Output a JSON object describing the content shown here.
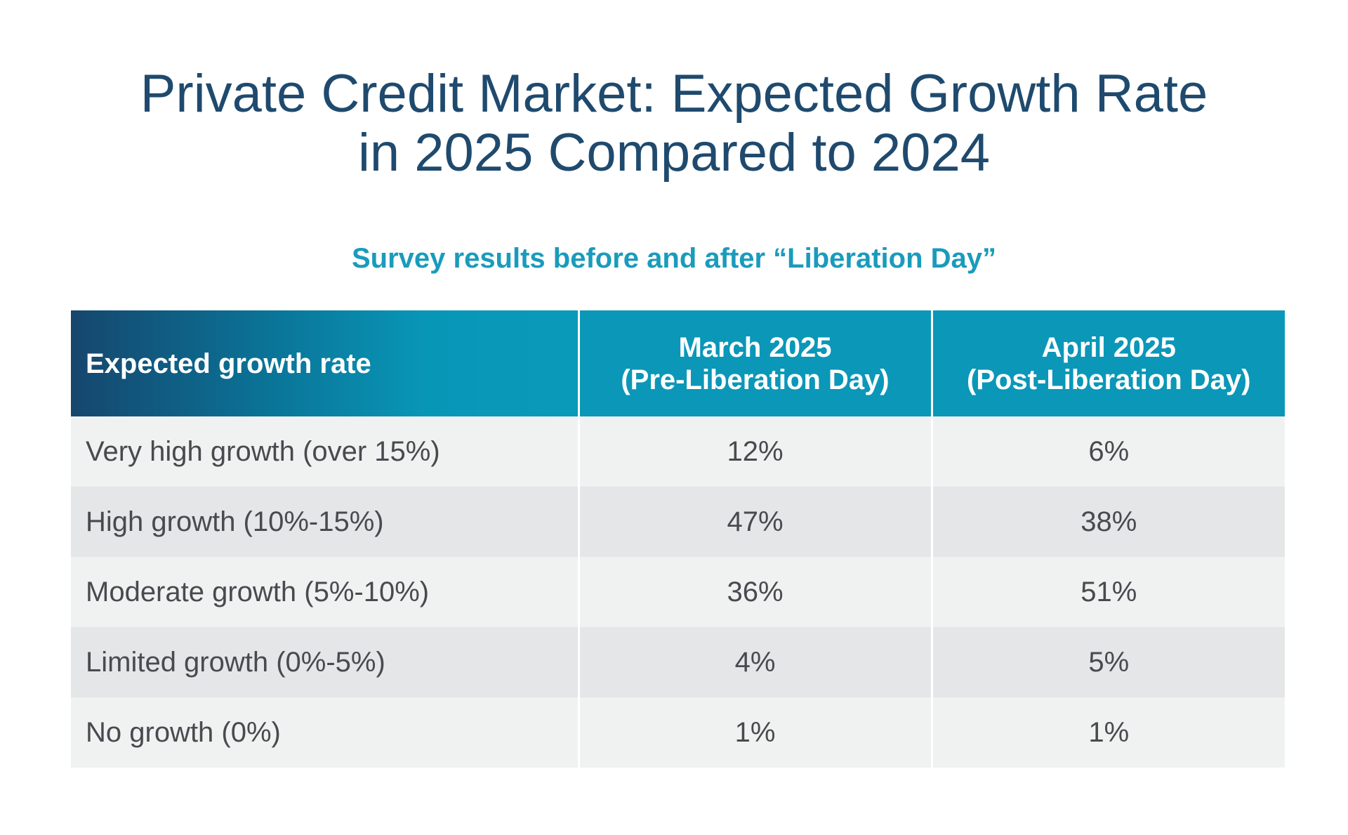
{
  "title": {
    "line1": "Private Credit Market: Expected Growth Rate",
    "line2": "in 2025 Compared to 2024"
  },
  "subtitle": "Survey results before and after “Liberation Day”",
  "colors": {
    "title": "#1f4a6e",
    "subtitle": "#1a9bbc",
    "header": "#0b97b8",
    "header_dark": "#16466e",
    "row_light": "#f0f2f1",
    "row_dark": "#e4e6e7",
    "text": "#474b4f"
  },
  "chart_data": {
    "type": "table",
    "title": "Private Credit Market: Expected Growth Rate in 2025 Compared to 2024",
    "subtitle": "Survey results before and after “Liberation Day”",
    "columns": [
      {
        "label": "Expected growth rate"
      },
      {
        "line1": "March 2025",
        "line2": "(Pre-Liberation Day)"
      },
      {
        "line1": "April 2025",
        "line2": "(Post-Liberation Day)"
      }
    ],
    "rows": [
      {
        "label": "Very high growth (over 15%)",
        "march": "12%",
        "april": "6%"
      },
      {
        "label": "High growth (10%-15%)",
        "march": "47%",
        "april": "38%"
      },
      {
        "label": "Moderate growth (5%-10%)",
        "march": "36%",
        "april": "51%"
      },
      {
        "label": "Limited growth (0%-5%)",
        "march": "4%",
        "april": "5%"
      },
      {
        "label": "No growth (0%)",
        "march": "1%",
        "april": "1%"
      }
    ]
  }
}
